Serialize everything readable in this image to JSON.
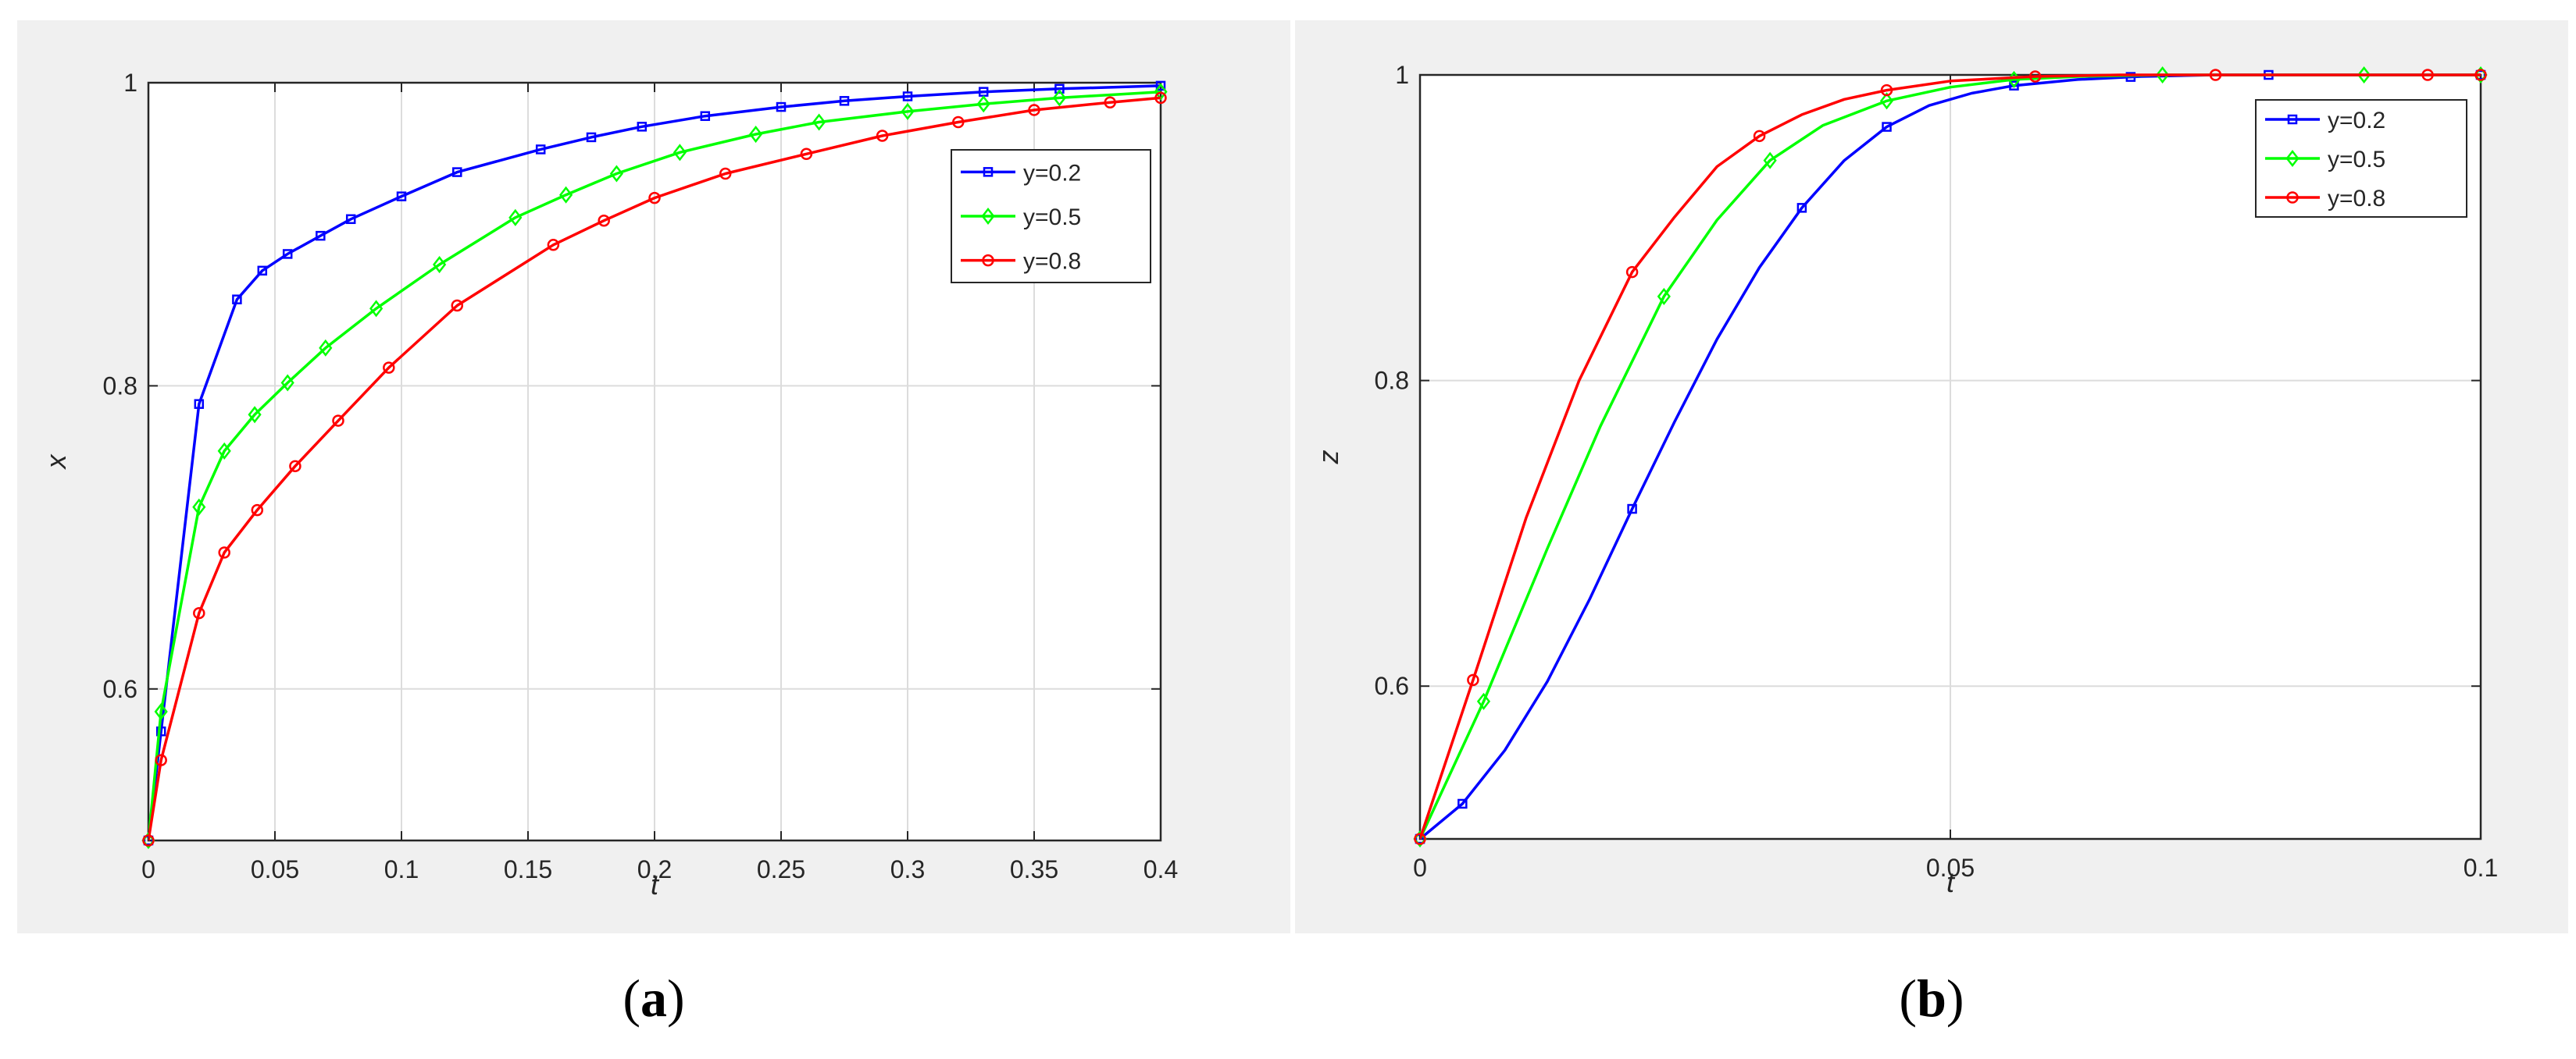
{
  "chart_data": [
    {
      "type": "line",
      "xlabel": "t",
      "ylabel": "x",
      "xlim": [
        0,
        0.4
      ],
      "ylim": [
        0.5,
        1.0
      ],
      "xticks": [
        0,
        0.05,
        0.1,
        0.15,
        0.2,
        0.25,
        0.3,
        0.35,
        0.4
      ],
      "xtick_labels": [
        "0",
        "0.05",
        "0.1",
        "0.15",
        "0.2",
        "0.25",
        "0.3",
        "0.35",
        "0.4"
      ],
      "yticks": [
        0.6,
        0.8,
        1.0
      ],
      "ytick_labels": [
        "0.6",
        "0.8",
        "1"
      ],
      "grid": true,
      "legend_position": "top-right",
      "series": [
        {
          "name": "y=0.2",
          "color": "#0000ff",
          "marker": "square",
          "x": [
            0,
            0.005,
            0.02,
            0.035,
            0.045,
            0.055,
            0.068,
            0.08,
            0.1,
            0.122,
            0.155,
            0.175,
            0.195,
            0.22,
            0.25,
            0.275,
            0.3,
            0.33,
            0.36,
            0.4
          ],
          "y": [
            0.5,
            0.572,
            0.788,
            0.857,
            0.876,
            0.887,
            0.899,
            0.91,
            0.925,
            0.941,
            0.956,
            0.964,
            0.971,
            0.978,
            0.984,
            0.988,
            0.991,
            0.994,
            0.996,
            0.998
          ]
        },
        {
          "name": "y=0.5",
          "color": "#00ff00",
          "marker": "diamond",
          "x": [
            0,
            0.005,
            0.02,
            0.03,
            0.042,
            0.055,
            0.07,
            0.09,
            0.115,
            0.145,
            0.165,
            0.185,
            0.21,
            0.24,
            0.265,
            0.3,
            0.33,
            0.36,
            0.4
          ],
          "y": [
            0.5,
            0.585,
            0.72,
            0.757,
            0.781,
            0.802,
            0.825,
            0.851,
            0.88,
            0.911,
            0.926,
            0.94,
            0.954,
            0.966,
            0.974,
            0.981,
            0.986,
            0.99,
            0.994
          ]
        },
        {
          "name": "y=0.8",
          "color": "#ff0000",
          "marker": "circle",
          "x": [
            0,
            0.005,
            0.02,
            0.03,
            0.043,
            0.058,
            0.075,
            0.095,
            0.122,
            0.16,
            0.18,
            0.2,
            0.228,
            0.26,
            0.29,
            0.32,
            0.35,
            0.38,
            0.4
          ],
          "y": [
            0.5,
            0.553,
            0.65,
            0.69,
            0.718,
            0.747,
            0.777,
            0.812,
            0.853,
            0.893,
            0.909,
            0.924,
            0.94,
            0.953,
            0.965,
            0.974,
            0.982,
            0.987,
            0.99
          ]
        }
      ]
    },
    {
      "type": "line",
      "xlabel": "t",
      "ylabel": "z",
      "xlim": [
        0,
        0.1
      ],
      "ylim": [
        0.5,
        1.0
      ],
      "xticks": [
        0,
        0.05,
        0.1
      ],
      "xtick_labels": [
        "0",
        "0.05",
        "0.1"
      ],
      "yticks": [
        0.6,
        0.8,
        1.0
      ],
      "ytick_labels": [
        "0.6",
        "0.8",
        "1"
      ],
      "grid": true,
      "legend_position": "top-right",
      "series": [
        {
          "name": "y=0.2",
          "color": "#0000ff",
          "marker": "square",
          "x": [
            0,
            0.004,
            0.008,
            0.012,
            0.016,
            0.02,
            0.024,
            0.028,
            0.032,
            0.036,
            0.04,
            0.044,
            0.048,
            0.052,
            0.056,
            0.062,
            0.068,
            0.075,
            0.082,
            0.09,
            0.1
          ],
          "y": [
            0.5,
            0.523,
            0.558,
            0.603,
            0.657,
            0.716,
            0.773,
            0.827,
            0.874,
            0.913,
            0.944,
            0.966,
            0.98,
            0.988,
            0.993,
            0.997,
            0.999,
            1.0,
            1.0,
            1.0,
            1.0
          ],
          "marker_x": [
            0,
            0.004,
            0.02,
            0.036,
            0.044,
            0.056,
            0.067,
            0.08,
            0.1
          ]
        },
        {
          "name": "y=0.5",
          "color": "#00ff00",
          "marker": "diamond",
          "x": [
            0,
            0.006,
            0.012,
            0.017,
            0.023,
            0.028,
            0.033,
            0.038,
            0.044,
            0.05,
            0.056,
            0.062,
            0.07,
            0.08,
            0.089,
            0.1
          ],
          "y": [
            0.5,
            0.59,
            0.69,
            0.77,
            0.855,
            0.905,
            0.944,
            0.967,
            0.983,
            0.992,
            0.997,
            0.999,
            1.0,
            1.0,
            1.0,
            1.0
          ],
          "marker_x": [
            0,
            0.006,
            0.023,
            0.033,
            0.044,
            0.056,
            0.07,
            0.089,
            0.1
          ]
        },
        {
          "name": "y=0.8",
          "color": "#ff0000",
          "marker": "circle",
          "x": [
            0,
            0.005,
            0.01,
            0.015,
            0.02,
            0.024,
            0.028,
            0.032,
            0.036,
            0.04,
            0.044,
            0.05,
            0.058,
            0.066,
            0.075,
            0.085,
            0.1
          ],
          "y": [
            0.5,
            0.604,
            0.71,
            0.8,
            0.871,
            0.907,
            0.94,
            0.96,
            0.974,
            0.984,
            0.99,
            0.996,
            0.999,
            1.0,
            1.0,
            1.0,
            1.0
          ],
          "marker_x": [
            0,
            0.005,
            0.02,
            0.032,
            0.044,
            0.058,
            0.075,
            0.095,
            0.1
          ]
        }
      ]
    }
  ],
  "captions": {
    "a": {
      "open": "(",
      "letter": "a",
      "close": ")"
    },
    "b": {
      "open": "(",
      "letter": "b",
      "close": ")"
    }
  }
}
